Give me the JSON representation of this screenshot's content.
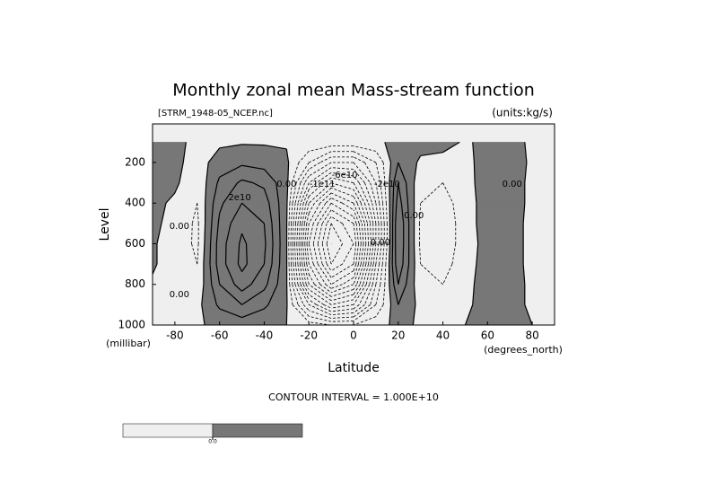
{
  "chart_data": {
    "type": "contour",
    "title": "Monthly zonal mean Mass-stream function",
    "subtitle_left": "[STRM_1948-05_NCEP.nc]",
    "subtitle_right": "(units:kg/s)",
    "ylabel": "Level",
    "yunit": "(millibar)",
    "xlabel": "Latitude",
    "xunit": "(degrees_north)",
    "note": "CONTOUR INTERVAL = 1.000E+10",
    "contour_interval": 10000000000.0,
    "xlim": [
      -90,
      90
    ],
    "ylim": [
      1000,
      10
    ],
    "xticks": [
      -80,
      -60,
      -40,
      -20,
      0,
      20,
      40,
      60,
      80
    ],
    "yticks": [
      1000,
      800,
      600,
      400,
      200
    ],
    "colors": {
      "negative": "#efefef",
      "positive": "#777777"
    },
    "colorbar": {
      "value": 0,
      "label": "0.0"
    },
    "x": [
      -90,
      -80,
      -70,
      -60,
      -50,
      -40,
      -30,
      -20,
      -10,
      0,
      10,
      20,
      30,
      40,
      50,
      60,
      70,
      80,
      90
    ],
    "y": [
      100,
      200,
      300,
      400,
      500,
      600,
      700,
      800,
      900,
      1000
    ],
    "z": [
      [
        3000000000.0,
        2000000000.0,
        -2000000000.0,
        -2000000000.0,
        -1000000000.0,
        -1000000000.0,
        -1000000000.0,
        -2000000000.0,
        -3000000000.0,
        -3000000000.0,
        -2000000000.0,
        3000000000.0,
        4000000000.0,
        3000000000.0,
        -1000000000.0,
        2000000000.0,
        2000000000.0,
        -1000000000.0,
        -1000000000.0
      ],
      [
        5000000000.0,
        3000000000.0,
        -5000000000.0,
        5000000000.0,
        8000000000.0,
        6000000000.0,
        2000000000.0,
        -20000000000.0,
        -40000000000.0,
        -40000000000.0,
        -20000000000.0,
        10000000000.0,
        -2000000000.0,
        -3000000000.0,
        -2000000000.0,
        3000000000.0,
        3000000000.0,
        -1000000000.0,
        -1000000000.0
      ],
      [
        5000000000.0,
        2000000000.0,
        -8000000000.0,
        12000000000.0,
        22000000000.0,
        18000000000.0,
        3000000000.0,
        -50000000000.0,
        -80000000000.0,
        -70000000000.0,
        -30000000000.0,
        20000000000.0,
        -8000000000.0,
        -10000000000.0,
        -3000000000.0,
        4000000000.0,
        4000000000.0,
        -2000000000.0,
        -1000000000.0
      ],
      [
        3000000000.0,
        -2000000000.0,
        -10000000000.0,
        18000000000.0,
        30000000000.0,
        25000000000.0,
        2000000000.0,
        -80000000000.0,
        -120000000000.0,
        -100000000000.0,
        -40000000000.0,
        25000000000.0,
        -10000000000.0,
        -15000000000.0,
        -4000000000.0,
        4000000000.0,
        4000000000.0,
        -2000000000.0,
        -1000000000.0
      ],
      [
        2000000000.0,
        -3000000000.0,
        -12000000000.0,
        22000000000.0,
        38000000000.0,
        30000000000.0,
        1000000000.0,
        -100000000000.0,
        -150000000000.0,
        -130000000000.0,
        -50000000000.0,
        30000000000.0,
        -12000000000.0,
        -18000000000.0,
        -4000000000.0,
        4000000000.0,
        3000000000.0,
        -2000000000.0,
        -1000000000.0
      ],
      [
        1000000000.0,
        -4000000000.0,
        -12000000000.0,
        25000000000.0,
        42000000000.0,
        32000000000.0,
        1000000000.0,
        -110000000000.0,
        -160000000000.0,
        -140000000000.0,
        -50000000000.0,
        30000000000.0,
        -12000000000.0,
        -18000000000.0,
        -4000000000.0,
        3000000000.0,
        3000000000.0,
        -2000000000.0,
        -1000000000.0
      ],
      [
        1000000000.0,
        -4000000000.0,
        -10000000000.0,
        25000000000.0,
        43000000000.0,
        30000000000.0,
        1000000000.0,
        -100000000000.0,
        -150000000000.0,
        -130000000000.0,
        -40000000000.0,
        28000000000.0,
        -10000000000.0,
        -15000000000.0,
        -3000000000.0,
        3000000000.0,
        3000000000.0,
        -2000000000.0,
        -1000000000.0
      ],
      [
        -1000000000.0,
        -4000000000.0,
        -8000000000.0,
        20000000000.0,
        35000000000.0,
        23000000000.0,
        1000000000.0,
        -80000000000.0,
        -120000000000.0,
        -100000000000.0,
        -30000000000.0,
        20000000000.0,
        -8000000000.0,
        -10000000000.0,
        -2000000000.0,
        3000000000.0,
        2000000000.0,
        -1000000000.0,
        -1000000000.0
      ],
      [
        -1000000000.0,
        -2000000000.0,
        -3000000000.0,
        12000000000.0,
        20000000000.0,
        12000000000.0,
        1000000000.0,
        -40000000000.0,
        -70000000000.0,
        -60000000000.0,
        -20000000000.0,
        10000000000.0,
        -3000000000.0,
        -4000000000.0,
        -1000000000.0,
        2000000000.0,
        2000000000.0,
        -1000000000.0,
        -1000000000.0
      ],
      [
        0,
        -1000000000.0,
        -1000000000.0,
        2000000000.0,
        4000000000.0,
        2000000000.0,
        0,
        -5000000000.0,
        -10000000000.0,
        -10000000000.0,
        -3000000000.0,
        2000000000.0,
        -1000000000.0,
        -1000000000.0,
        0,
        1000000000.0,
        1000000000.0,
        0,
        0
      ]
    ],
    "contour_labels": [
      {
        "text": "2e10",
        "x": -51,
        "y": 372
      },
      {
        "text": "0.00",
        "x": -78,
        "y": 514
      },
      {
        "text": "0.00",
        "x": -30,
        "y": 306
      },
      {
        "text": "-1e11",
        "x": -14,
        "y": 306
      },
      {
        "text": "-6e10",
        "x": -4,
        "y": 262
      },
      {
        "text": "-2e10",
        "x": 15,
        "y": 306
      },
      {
        "text": "0.00",
        "x": 27,
        "y": 460
      },
      {
        "text": "0.00",
        "x": 12,
        "y": 593
      },
      {
        "text": "0.00",
        "x": 71,
        "y": 306
      },
      {
        "text": "0.00",
        "x": -78,
        "y": 850
      }
    ]
  }
}
